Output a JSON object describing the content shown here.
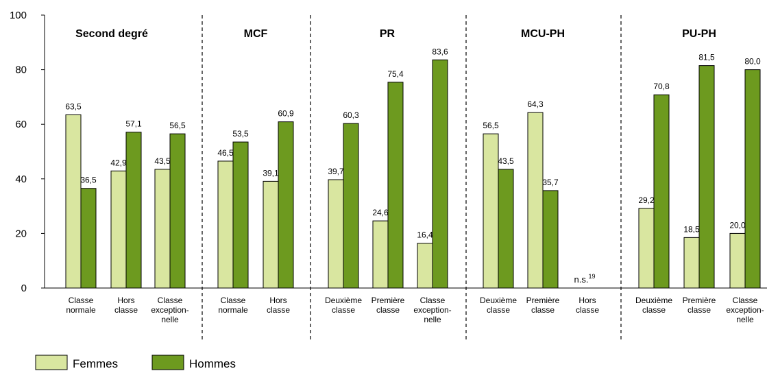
{
  "chart_data": {
    "type": "bar",
    "ylim": [
      0,
      100
    ],
    "yticks": [
      "0",
      "20",
      "40",
      "60",
      "80",
      "100"
    ],
    "grid": false,
    "legend_position": "bottom-left",
    "colors": {
      "Femmes": "#d9e6a0",
      "Hommes": "#6d9a1f"
    },
    "series_names": [
      "Femmes",
      "Hommes"
    ],
    "groups": [
      {
        "title": "Second degré",
        "categories": [
          {
            "label": [
              "Classe",
              "normale"
            ],
            "values": [
              63.5,
              36.5
            ],
            "value_labels": [
              "63,5",
              "36,5"
            ]
          },
          {
            "label": [
              "Hors",
              "classe"
            ],
            "values": [
              42.9,
              57.1
            ],
            "value_labels": [
              "42,9",
              "57,1"
            ]
          },
          {
            "label": [
              "Classe",
              "exception-",
              "nelle"
            ],
            "values": [
              43.5,
              56.5
            ],
            "value_labels": [
              "43,5",
              "56,5"
            ]
          }
        ]
      },
      {
        "title": "MCF",
        "categories": [
          {
            "label": [
              "Classe",
              "normale"
            ],
            "values": [
              46.5,
              53.5
            ],
            "value_labels": [
              "46,5",
              "53,5"
            ]
          },
          {
            "label": [
              "Hors",
              "classe"
            ],
            "values": [
              39.1,
              60.9
            ],
            "value_labels": [
              "39,1",
              "60,9"
            ]
          }
        ]
      },
      {
        "title": "PR",
        "categories": [
          {
            "label": [
              "Deuxième",
              "classe"
            ],
            "values": [
              39.7,
              60.3
            ],
            "value_labels": [
              "39,7",
              "60,3"
            ]
          },
          {
            "label": [
              "Première",
              "classe"
            ],
            "values": [
              24.6,
              75.4
            ],
            "value_labels": [
              "24,6",
              "75,4"
            ]
          },
          {
            "label": [
              "Classe",
              "exception-",
              "nelle"
            ],
            "values": [
              16.4,
              83.6
            ],
            "value_labels": [
              "16,4",
              "83,6"
            ]
          }
        ]
      },
      {
        "title": "MCU-PH",
        "categories": [
          {
            "label": [
              "Deuxième",
              "classe"
            ],
            "values": [
              56.5,
              43.5
            ],
            "value_labels": [
              "56,5",
              "43,5"
            ]
          },
          {
            "label": [
              "Première",
              "classe"
            ],
            "values": [
              64.3,
              35.7
            ],
            "value_labels": [
              "64,3",
              "35,7"
            ]
          },
          {
            "label": [
              "Hors",
              "classe"
            ],
            "values": [
              null,
              null
            ],
            "value_labels": [
              "",
              ""
            ],
            "note": "n.s.",
            "note_sup": "19"
          }
        ]
      },
      {
        "title": "PU-PH",
        "categories": [
          {
            "label": [
              "Deuxième",
              "classe"
            ],
            "values": [
              29.2,
              70.8
            ],
            "value_labels": [
              "29,2",
              "70,8"
            ]
          },
          {
            "label": [
              "Première",
              "classe"
            ],
            "values": [
              18.5,
              81.5
            ],
            "value_labels": [
              "18,5",
              "81,5"
            ]
          },
          {
            "label": [
              "Classe",
              "exception-",
              "nelle"
            ],
            "values": [
              20.0,
              80.0
            ],
            "value_labels": [
              "20,0",
              "80,0"
            ]
          }
        ]
      }
    ]
  }
}
